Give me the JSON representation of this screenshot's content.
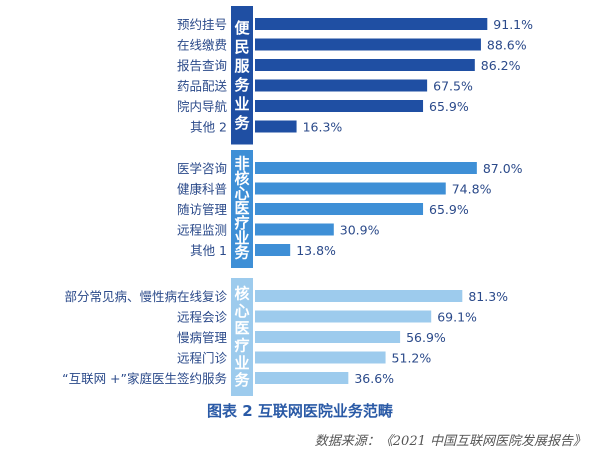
{
  "caption": "图表 2 互联网医院业务范畴",
  "source_prefix": "数据来源：",
  "source_title": "《2021 中国互联网医院发展报告》",
  "colors": {
    "group1": "#1f4fa3",
    "group2": "#3e8fd6",
    "group3": "#9dcbed",
    "label": "#2b4a8a"
  },
  "chart_data": {
    "type": "bar",
    "orientation": "horizontal",
    "xlim": [
      0,
      100
    ],
    "value_suffix": "%",
    "grid": false,
    "groups": [
      {
        "name": "便民服务业务",
        "categories": [
          "预约挂号",
          "在线缴费",
          "报告查询",
          "药品配送",
          "院内导航",
          "其他 2"
        ],
        "values": [
          91.1,
          88.6,
          86.2,
          67.5,
          65.9,
          16.3
        ]
      },
      {
        "name": "非核心医疗业务",
        "categories": [
          "医学咨询",
          "健康科普",
          "随访管理",
          "远程监测",
          "其他 1"
        ],
        "values": [
          87.0,
          74.8,
          65.9,
          30.9,
          13.8
        ]
      },
      {
        "name": "核心医疗业务",
        "categories": [
          "部分常见病、慢性病在线复诊",
          "远程会诊",
          "慢病管理",
          "远程门诊",
          "“互联网 +”家庭医生签约服务"
        ],
        "values": [
          81.3,
          69.1,
          56.9,
          51.2,
          36.6
        ]
      }
    ]
  }
}
